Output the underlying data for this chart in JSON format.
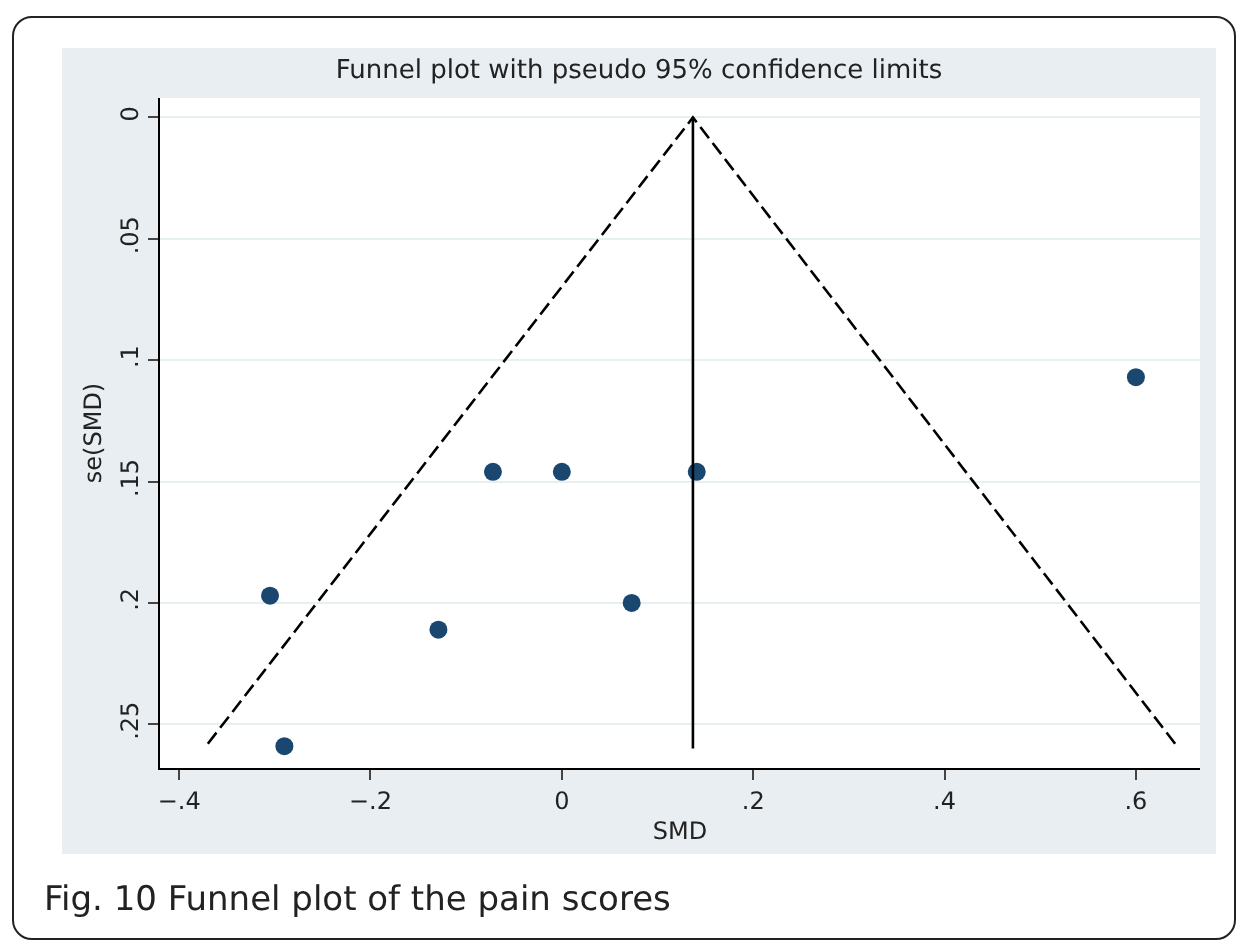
{
  "chart_data": {
    "type": "scatter",
    "title": "Funnel plot with pseudo 95% confidence limits",
    "xlabel": "SMD",
    "ylabel": "se(SMD)",
    "annotations": [
      "Fig. 10 Funnel plot of the pain scores"
    ],
    "series": [
      {
        "type": "scatter",
        "marker": "circle",
        "color": "#1a476f",
        "x": [
          0.6,
          -0.072,
          0,
          0.141,
          -0.305,
          -0.129,
          0.073,
          -0.29
        ],
        "values": [
          0.107,
          0.146,
          0.146,
          0.146,
          0.197,
          0.211,
          0.2,
          0.259
        ]
      },
      {
        "type": "line",
        "marker": "none",
        "line_style": "dashed",
        "color": "#000000",
        "x": [
          -0.37,
          0.137,
          0.641
        ],
        "values": [
          0.258,
          0,
          0.258
        ]
      },
      {
        "type": "line",
        "marker": "none",
        "line_style": "solid",
        "color": "#000000",
        "x": [
          0.137,
          0.137
        ],
        "values": [
          0,
          0.26
        ]
      }
    ],
    "xlim": [
      -0.42,
      0.667
    ],
    "xticks": [
      {
        "value": -0.4,
        "label": "−.4"
      },
      {
        "value": -0.2,
        "label": "−.2"
      },
      0,
      {
        "value": 0.2,
        "label": ".2"
      },
      {
        "value": 0.4,
        "label": ".4"
      },
      {
        "value": 0.6,
        "label": ".6"
      }
    ],
    "ylim": [
      0.268,
      -0.008
    ],
    "yticks": [
      0,
      {
        "value": 0.05,
        "label": ".05"
      },
      {
        "value": 0.1,
        "label": ".1"
      },
      {
        "value": 0.15,
        "label": ".15"
      },
      {
        "value": 0.2,
        "label": ".2"
      },
      {
        "value": 0.25,
        "label": ".25"
      }
    ],
    "grid": "y"
  }
}
